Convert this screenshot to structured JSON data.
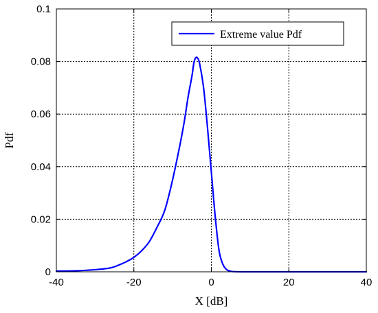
{
  "chart_data": {
    "type": "line",
    "title": "",
    "xlabel": "X [dB]",
    "ylabel": "Pdf",
    "xlim": [
      -40,
      40
    ],
    "ylim": [
      0,
      0.1
    ],
    "xticks": [
      -40,
      -20,
      0,
      20,
      40
    ],
    "xtick_labels": [
      "-40",
      "-20",
      "0",
      "20",
      "40"
    ],
    "yticks": [
      0,
      0.02,
      0.04,
      0.06,
      0.08,
      0.1
    ],
    "ytick_labels": [
      "0",
      "0.02",
      "0.04",
      "0.06",
      "0.08",
      "0.1"
    ],
    "grid": true,
    "legend_position": "top-right",
    "series": [
      {
        "name": "Extreme value Pdf",
        "color": "#0000ff",
        "x": [
          -40,
          -35,
          -30,
          -26,
          -24,
          -22,
          -20,
          -18,
          -16,
          -14,
          -12,
          -10,
          -8,
          -7,
          -6,
          -5,
          -4.5,
          -4,
          -3.5,
          -3,
          -2,
          -1,
          0,
          1,
          2,
          3,
          4,
          5,
          6,
          8,
          10,
          12,
          15,
          20,
          30,
          40
        ],
        "y": [
          0.0003,
          0.0004,
          0.0008,
          0.0015,
          0.0025,
          0.0038,
          0.0055,
          0.008,
          0.0115,
          0.017,
          0.0235,
          0.035,
          0.049,
          0.057,
          0.0665,
          0.0745,
          0.0795,
          0.0815,
          0.0812,
          0.079,
          0.07,
          0.055,
          0.038,
          0.021,
          0.008,
          0.0028,
          0.0008,
          0.0002,
          5e-05,
          0.0,
          0.0,
          0.0,
          0.0,
          0.0,
          0.0,
          0.0
        ]
      }
    ]
  }
}
